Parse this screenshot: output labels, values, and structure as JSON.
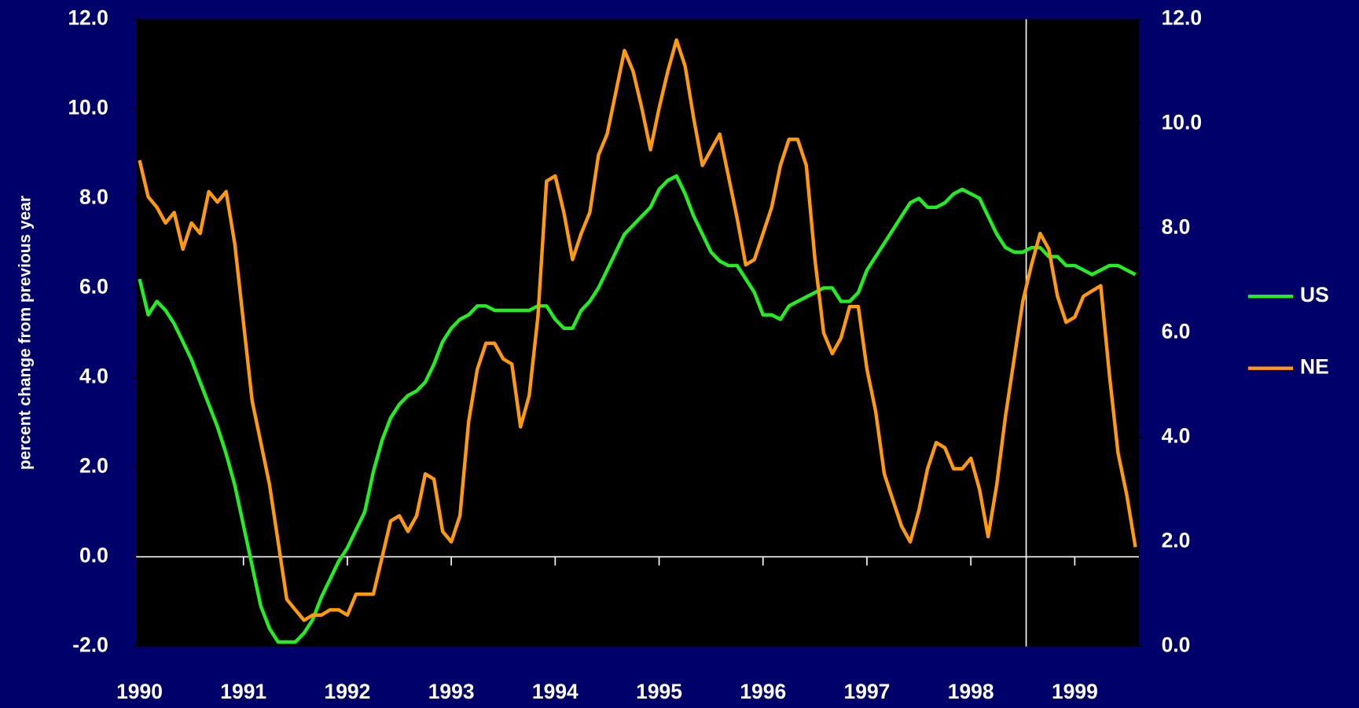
{
  "chart_data": {
    "type": "line",
    "y_label": "percent change from previous year",
    "categories": [
      "1990",
      null,
      null,
      null,
      null,
      null,
      null,
      null,
      null,
      null,
      null,
      null,
      "1991",
      null,
      null,
      null,
      null,
      null,
      null,
      null,
      null,
      null,
      null,
      null,
      "1992",
      null,
      null,
      null,
      null,
      null,
      null,
      null,
      null,
      null,
      null,
      null,
      "1993",
      null,
      null,
      null,
      null,
      null,
      null,
      null,
      null,
      null,
      null,
      null,
      "1994",
      null,
      null,
      null,
      null,
      null,
      null,
      null,
      null,
      null,
      null,
      null,
      "1995",
      null,
      null,
      null,
      null,
      null,
      null,
      null,
      null,
      null,
      null,
      null,
      "1996",
      null,
      null,
      null,
      null,
      null,
      null,
      null,
      null,
      null,
      null,
      null,
      "1997",
      null,
      null,
      null,
      null,
      null,
      null,
      null,
      null,
      null,
      null,
      null,
      "1998",
      null,
      null,
      null,
      null,
      null,
      null,
      null,
      null,
      null,
      null,
      null,
      "1999",
      null,
      null,
      null,
      null,
      null,
      null,
      null
    ],
    "series": [
      {
        "name": "US",
        "color": "#22ee22",
        "values": [
          6.2,
          5.4,
          5.7,
          5.5,
          5.2,
          4.8,
          4.4,
          3.9,
          3.4,
          2.9,
          2.3,
          1.6,
          0.7,
          -0.2,
          -1.1,
          -1.6,
          -1.9,
          -1.9,
          -1.9,
          -1.7,
          -1.4,
          -0.9,
          -0.5,
          -0.1,
          0.2,
          0.6,
          1.0,
          1.9,
          2.6,
          3.1,
          3.4,
          3.6,
          3.7,
          3.9,
          4.3,
          4.8,
          5.1,
          5.3,
          5.4,
          5.6,
          5.6,
          5.5,
          5.5,
          5.5,
          5.5,
          5.5,
          5.6,
          5.6,
          5.3,
          5.1,
          5.1,
          5.5,
          5.7,
          6.0,
          6.4,
          6.8,
          7.2,
          7.4,
          7.6,
          7.8,
          8.2,
          8.4,
          8.5,
          8.1,
          7.6,
          7.2,
          6.8,
          6.6,
          6.5,
          6.5,
          6.2,
          5.9,
          5.4,
          5.4,
          5.3,
          5.6,
          5.7,
          5.8,
          5.9,
          6.0,
          6.0,
          5.7,
          5.7,
          5.9,
          6.4,
          6.7,
          7.0,
          7.3,
          7.6,
          7.9,
          8.0,
          7.8,
          7.8,
          7.9,
          8.1,
          8.2,
          8.1,
          8.0,
          7.6,
          7.2,
          6.9,
          6.8,
          6.8,
          6.9,
          6.9,
          6.7,
          6.7,
          6.5,
          6.5,
          6.4,
          6.3,
          6.4,
          6.5,
          6.5,
          6.4,
          6.3
        ]
      },
      {
        "name": "NE",
        "color": "#ff9a0e",
        "axis": "y2",
        "values": [
          9.3,
          8.6,
          8.4,
          8.1,
          8.3,
          7.6,
          8.1,
          7.9,
          8.7,
          8.5,
          8.7,
          7.7,
          6.2,
          4.7,
          3.9,
          3.1,
          2.0,
          0.9,
          0.7,
          0.5,
          0.6,
          0.6,
          0.7,
          0.7,
          0.6,
          1.0,
          1.0,
          1.0,
          1.7,
          2.4,
          2.5,
          2.2,
          2.5,
          3.3,
          3.2,
          2.2,
          2.0,
          2.5,
          4.3,
          5.3,
          5.8,
          5.8,
          5.5,
          5.4,
          4.2,
          4.8,
          6.3,
          8.9,
          9.0,
          8.3,
          7.4,
          7.9,
          8.3,
          9.4,
          9.8,
          10.6,
          11.4,
          11.0,
          10.3,
          9.5,
          10.3,
          11.0,
          11.6,
          11.1,
          10.1,
          9.2,
          9.5,
          9.8,
          9.0,
          8.2,
          7.3,
          7.4,
          7.9,
          8.4,
          9.2,
          9.7,
          9.7,
          9.2,
          7.4,
          6.0,
          5.6,
          5.9,
          6.5,
          6.5,
          5.3,
          4.5,
          3.3,
          2.8,
          2.3,
          2.0,
          2.6,
          3.4,
          3.9,
          3.8,
          3.4,
          3.4,
          3.6,
          3.0,
          2.1,
          3.1,
          4.4,
          5.5,
          6.6,
          7.3,
          7.9,
          7.6,
          6.7,
          6.2,
          6.3,
          6.7,
          6.8,
          6.9,
          5.2,
          3.7,
          2.9,
          1.9
        ]
      }
    ],
    "ylim": [
      -2,
      12
    ],
    "yticks": [
      {
        "value": -2,
        "label": "-2.0"
      },
      {
        "value": 0,
        "label": "0.0"
      },
      {
        "value": 2,
        "label": "2.0"
      },
      {
        "value": 4,
        "label": "4.0"
      },
      {
        "value": 6,
        "label": "6.0"
      },
      {
        "value": 8,
        "label": "8.0"
      },
      {
        "value": 10,
        "label": "10.0"
      },
      {
        "value": 12,
        "label": "12.0"
      }
    ],
    "y2lim": [
      0,
      12
    ],
    "y2ticks": [
      {
        "value": 0,
        "label": "0.0"
      },
      {
        "value": 2,
        "label": "2.0"
      },
      {
        "value": 4,
        "label": "4.0"
      },
      {
        "value": 6,
        "label": "6.0"
      },
      {
        "value": 8,
        "label": "8.0"
      },
      {
        "value": 10,
        "label": "10.0"
      },
      {
        "value": 12,
        "label": "12.0"
      }
    ],
    "legend": "right",
    "grid": false
  }
}
